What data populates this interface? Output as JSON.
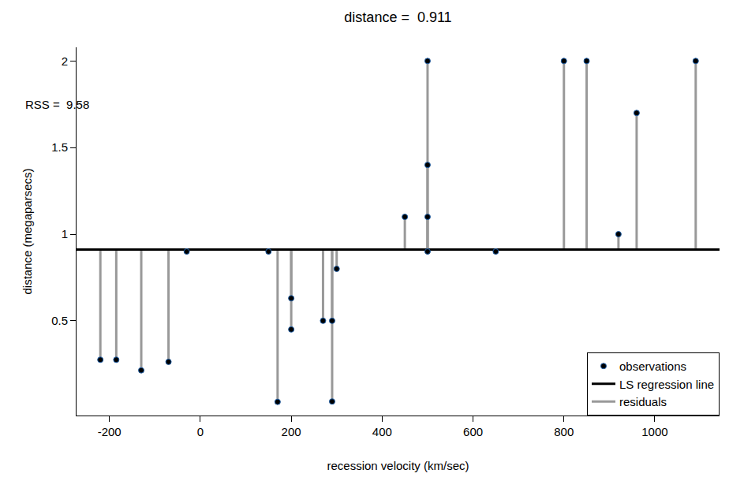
{
  "chart_data": {
    "type": "scatter",
    "title": "distance =  0.911",
    "annotation": "RSS =  9.58",
    "x_label": "recession velocity (km/sec)",
    "y_label": "distance (megaparsecs)",
    "x": [
      170,
      290,
      -130,
      -70,
      -185,
      -220,
      200,
      290,
      270,
      200,
      300,
      -30,
      650,
      150,
      500,
      920,
      450,
      500,
      500,
      960,
      500,
      850,
      800,
      1090
    ],
    "series": [
      {
        "name": "observations",
        "color": "#000000",
        "marker": "circle",
        "values": [
          0.032,
          0.034,
          0.214,
          0.263,
          0.275,
          0.275,
          0.45,
          0.5,
          0.5,
          0.63,
          0.8,
          0.9,
          0.9,
          0.9,
          0.9,
          1.0,
          1.1,
          1.1,
          1.4,
          1.7,
          2.0,
          2.0,
          2.0,
          2.0
        ]
      }
    ],
    "regression_line": {
      "name": "LS regression line",
      "value": 0.911,
      "color": "#000000",
      "line_style": "solid"
    },
    "residuals": {
      "name": "residuals",
      "color": "#999999",
      "line_style": "solid"
    },
    "xlim": [
      -272.4,
      1142.4
    ],
    "xticks": [
      -200,
      0,
      200,
      400,
      600,
      800,
      1000
    ],
    "ylim": [
      -0.047,
      2.079
    ],
    "yticks": [
      0.5,
      1,
      1.5,
      2
    ],
    "grid": false,
    "legend": "bottom right"
  }
}
